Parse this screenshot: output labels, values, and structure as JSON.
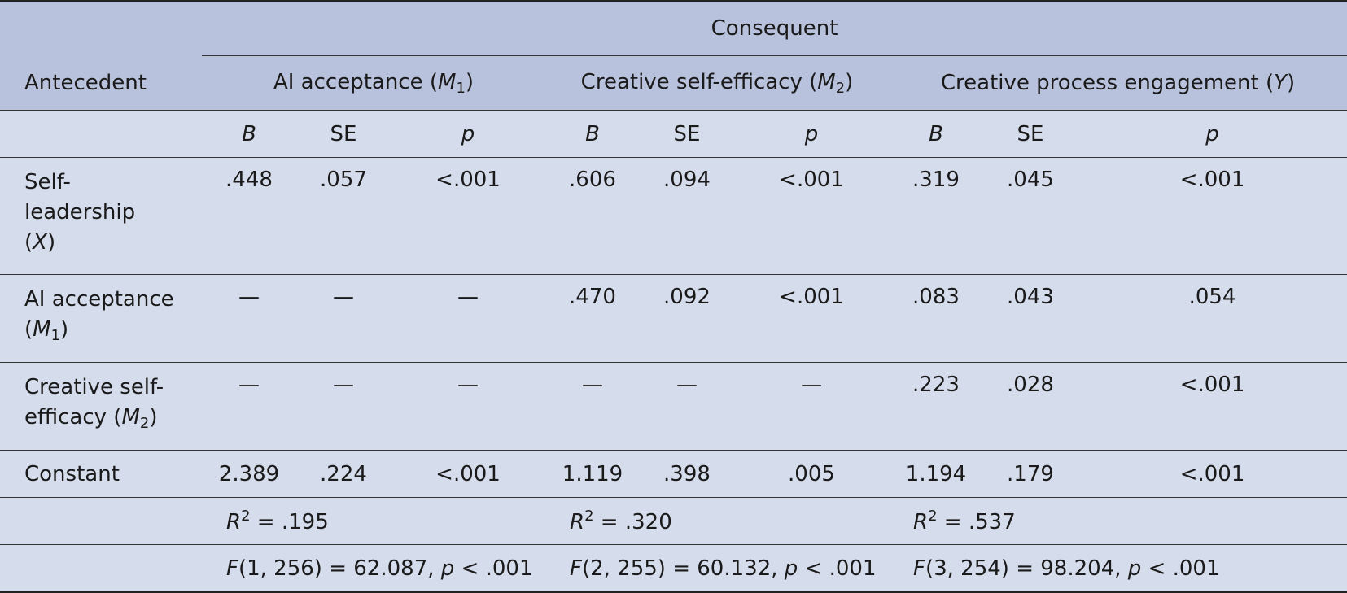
{
  "table": {
    "consequent_label": "Consequent",
    "antecedent_label": "Antecedent",
    "groups": [
      {
        "name": "AI acceptance (",
        "var": "M",
        "sub": "1",
        "close": ")"
      },
      {
        "name": "Creative self-efficacy (",
        "var": "M",
        "sub": "2",
        "close": ")"
      },
      {
        "name": "Creative process engagement (",
        "var": "Y",
        "sub": "",
        "close": ")"
      }
    ],
    "col_headers": {
      "b": "B",
      "se": "SE",
      "p": "p"
    },
    "rows": [
      {
        "label_parts": [
          "Self-",
          "leadership",
          "(",
          "X",
          ")"
        ],
        "cells": [
          ".448",
          ".057",
          "<.001",
          ".606",
          ".094",
          "<.001",
          ".319",
          ".045",
          "<.001"
        ]
      },
      {
        "label_parts": [
          "AI acceptance",
          "(",
          "M",
          "1",
          ")"
        ],
        "cells": [
          "—",
          "—",
          "—",
          ".470",
          ".092",
          "<.001",
          ".083",
          ".043",
          ".054"
        ]
      },
      {
        "label_parts": [
          "Creative self-",
          "efficacy (",
          "M",
          "2",
          ")"
        ],
        "cells": [
          "—",
          "—",
          "—",
          "—",
          "—",
          "—",
          ".223",
          ".028",
          "<.001"
        ]
      },
      {
        "label_parts": [
          "Constant"
        ],
        "cells": [
          "2.389",
          ".224",
          "<.001",
          "1.119",
          ".398",
          ".005",
          "1.194",
          ".179",
          "<.001"
        ]
      }
    ],
    "r2": [
      {
        "lhs": "R",
        "sup": "2",
        "rest": " = .195"
      },
      {
        "lhs": "R",
        "sup": "2",
        "rest": " = .320"
      },
      {
        "lhs": "R",
        "sup": "2",
        "rest": " = .537"
      }
    ],
    "f": [
      {
        "f": "F",
        "args": "(1, 256) = 62.087, ",
        "p": "p",
        "rest": " < .001"
      },
      {
        "f": "F",
        "args": "(2, 255) = 60.132, ",
        "p": "p",
        "rest": " < .001"
      },
      {
        "f": "F",
        "args": "(3, 254) = 98.204, ",
        "p": "p",
        "rest": " < .001"
      }
    ]
  }
}
